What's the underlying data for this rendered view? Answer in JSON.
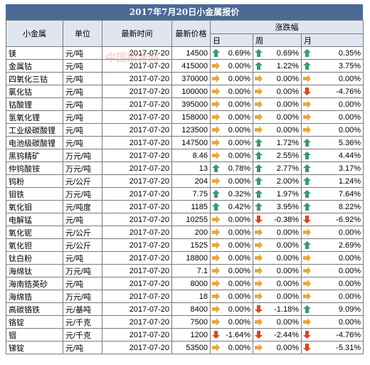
{
  "title": "2017年7月20日小金属报价",
  "watermark": "中国报告网",
  "header": {
    "name": "小金属",
    "unit": "单位",
    "time": "最新时间",
    "price": "最新价格",
    "change": "涨跌幅",
    "day": "日",
    "week": "周",
    "month": "月"
  },
  "table": {
    "rows": [
      [
        "镁",
        "元/吨",
        "2017-07-20",
        "14500",
        "0.69%",
        "0.69%",
        "0.35%"
      ],
      [
        "金属钴",
        "元/吨",
        "2017-07-20",
        "415000",
        "0.00%",
        "1.22%",
        "3.75%"
      ],
      [
        "四氧化三钴",
        "元/吨",
        "2017-07-20",
        "370000",
        "0.00%",
        "0.00%",
        "0.00%"
      ],
      [
        "氯化钴",
        "元/吨",
        "2017-07-20",
        "100000",
        "0.00%",
        "0.00%",
        "-4.76%"
      ],
      [
        "钴酸锂",
        "元/吨",
        "2017-07-20",
        "395000",
        "0.00%",
        "0.00%",
        "0.00%"
      ],
      [
        "氢氧化锂",
        "元/吨",
        "2017-07-20",
        "158000",
        "0.00%",
        "0.00%",
        "0.00%"
      ],
      [
        "工业级碳酸锂",
        "元/吨",
        "2017-07-20",
        "123500",
        "0.00%",
        "0.00%",
        "0.00%"
      ],
      [
        "电池级碳酸锂",
        "元/吨",
        "2017-07-20",
        "147500",
        "0.00%",
        "1.72%",
        "5.36%"
      ],
      [
        "黑钨精矿",
        "万元/吨",
        "2017-07-20",
        "8.46",
        "0.00%",
        "2.55%",
        "4.44%"
      ],
      [
        "仲钨酸铵",
        "万元/吨",
        "2017-07-20",
        "13",
        "0.78%",
        "2.77%",
        "3.17%"
      ],
      [
        "钨粉",
        "元/公斤",
        "2017-07-20",
        "204",
        "0.00%",
        "2.00%",
        "1.24%"
      ],
      [
        "钼铁",
        "万元/吨",
        "2017-07-20",
        "7.75",
        "0.32%",
        "1.97%",
        "7.64%"
      ],
      [
        "氧化钼",
        "元/吨度",
        "2017-07-20",
        "1185",
        "0.42%",
        "3.95%",
        "8.22%"
      ],
      [
        "电解锰",
        "元/吨",
        "2017-07-20",
        "10255",
        "0.00%",
        "-0.38%",
        "-6.92%"
      ],
      [
        "氧化铌",
        "元/公斤",
        "2017-07-20",
        "200",
        "0.00%",
        "0.00%",
        "0.00%"
      ],
      [
        "氧化钽",
        "元/公斤",
        "2017-07-20",
        "1525",
        "0.00%",
        "0.00%",
        "2.69%"
      ],
      [
        "钛白粉",
        "元/吨",
        "2017-07-20",
        "18800",
        "0.00%",
        "0.00%",
        "0.00%"
      ],
      [
        "海绵钛",
        "万元/吨",
        "2017-07-20",
        "7.1",
        "0.00%",
        "0.00%",
        "0.00%"
      ],
      [
        "海南锆英砂",
        "元/吨",
        "2017-07-20",
        "8000",
        "0.00%",
        "0.00%",
        "0.00%"
      ],
      [
        "海绵锆",
        "万元/吨",
        "2017-07-20",
        "18",
        "0.00%",
        "0.00%",
        "0.00%"
      ],
      [
        "高碳铬铁",
        "元/基吨",
        "2017-07-20",
        "8400",
        "0.00%",
        "-1.18%",
        "9.09%"
      ],
      [
        "铬锭",
        "元/千克",
        "2017-07-20",
        "7500",
        "0.00%",
        "0.00%",
        "0.00%"
      ],
      [
        "铟",
        "元/千克",
        "2017-07-20",
        "1200",
        "-1.64%",
        "-2.44%",
        "-4.76%"
      ],
      [
        "锑锭",
        "元/吨",
        "2017-07-20",
        "53500",
        "0.00%",
        "0.00%",
        "-5.31%"
      ]
    ]
  }
}
